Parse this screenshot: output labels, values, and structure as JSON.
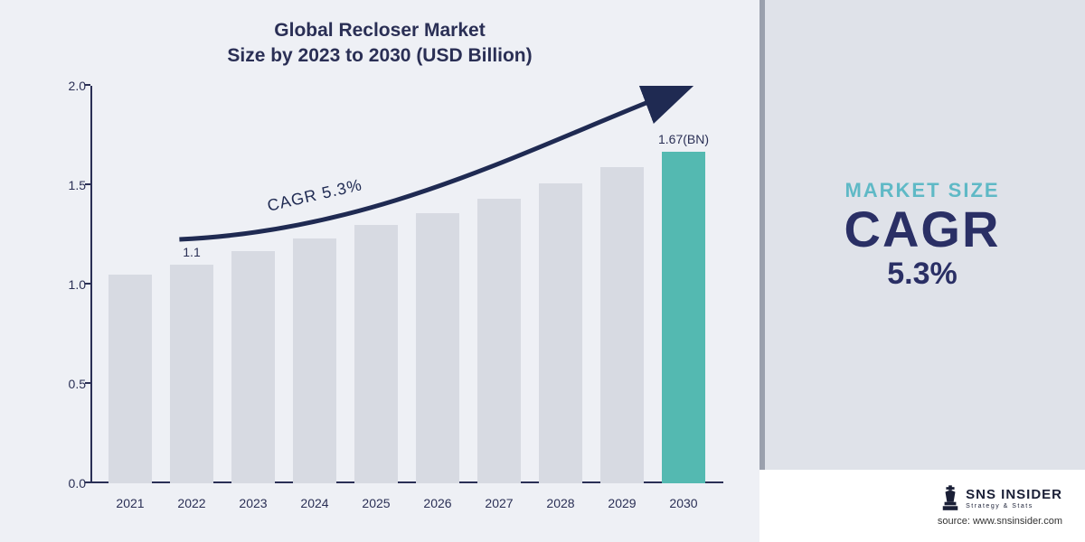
{
  "colors": {
    "chart_bg": "#eef0f5",
    "side_bg": "#dfe2e9",
    "title": "#2a2f55",
    "axis": "#2a2f55",
    "grid": "#c9ccd6",
    "bar": "#d7dae2",
    "highlight": "#54b9b1",
    "curve": "#1f2a52",
    "ms_label": "#5fb9c6",
    "cagr": "#2a2f65"
  },
  "title": {
    "line1": "Global Recloser Market",
    "line2": "Size by 2023 to 2030 (USD Billion)"
  },
  "chart": {
    "type": "bar",
    "ylim": [
      0.0,
      2.0
    ],
    "ytick_step": 0.5,
    "yticks": [
      "0.0",
      "0.5",
      "1.0",
      "1.5",
      "2.0"
    ],
    "categories": [
      "2021",
      "2022",
      "2023",
      "2024",
      "2025",
      "2026",
      "2027",
      "2028",
      "2029",
      "2030"
    ],
    "values": [
      1.05,
      1.1,
      1.17,
      1.23,
      1.3,
      1.36,
      1.43,
      1.51,
      1.59,
      1.67
    ],
    "highlight_index": 9,
    "point_labels": {
      "1": "1.1",
      "9": "1.67(BN)"
    },
    "curve_label": "CAGR  5.3%",
    "curve_rotation_deg": -13,
    "bar_width_pct": 72
  },
  "side": {
    "label": "MARKET SIZE",
    "cagr_word": "CAGR",
    "cagr_value": "5.3%"
  },
  "logo": {
    "main": "SNS INSIDER",
    "sub": "Strategy & Stats"
  },
  "source": "source: www.snsinsider.com"
}
